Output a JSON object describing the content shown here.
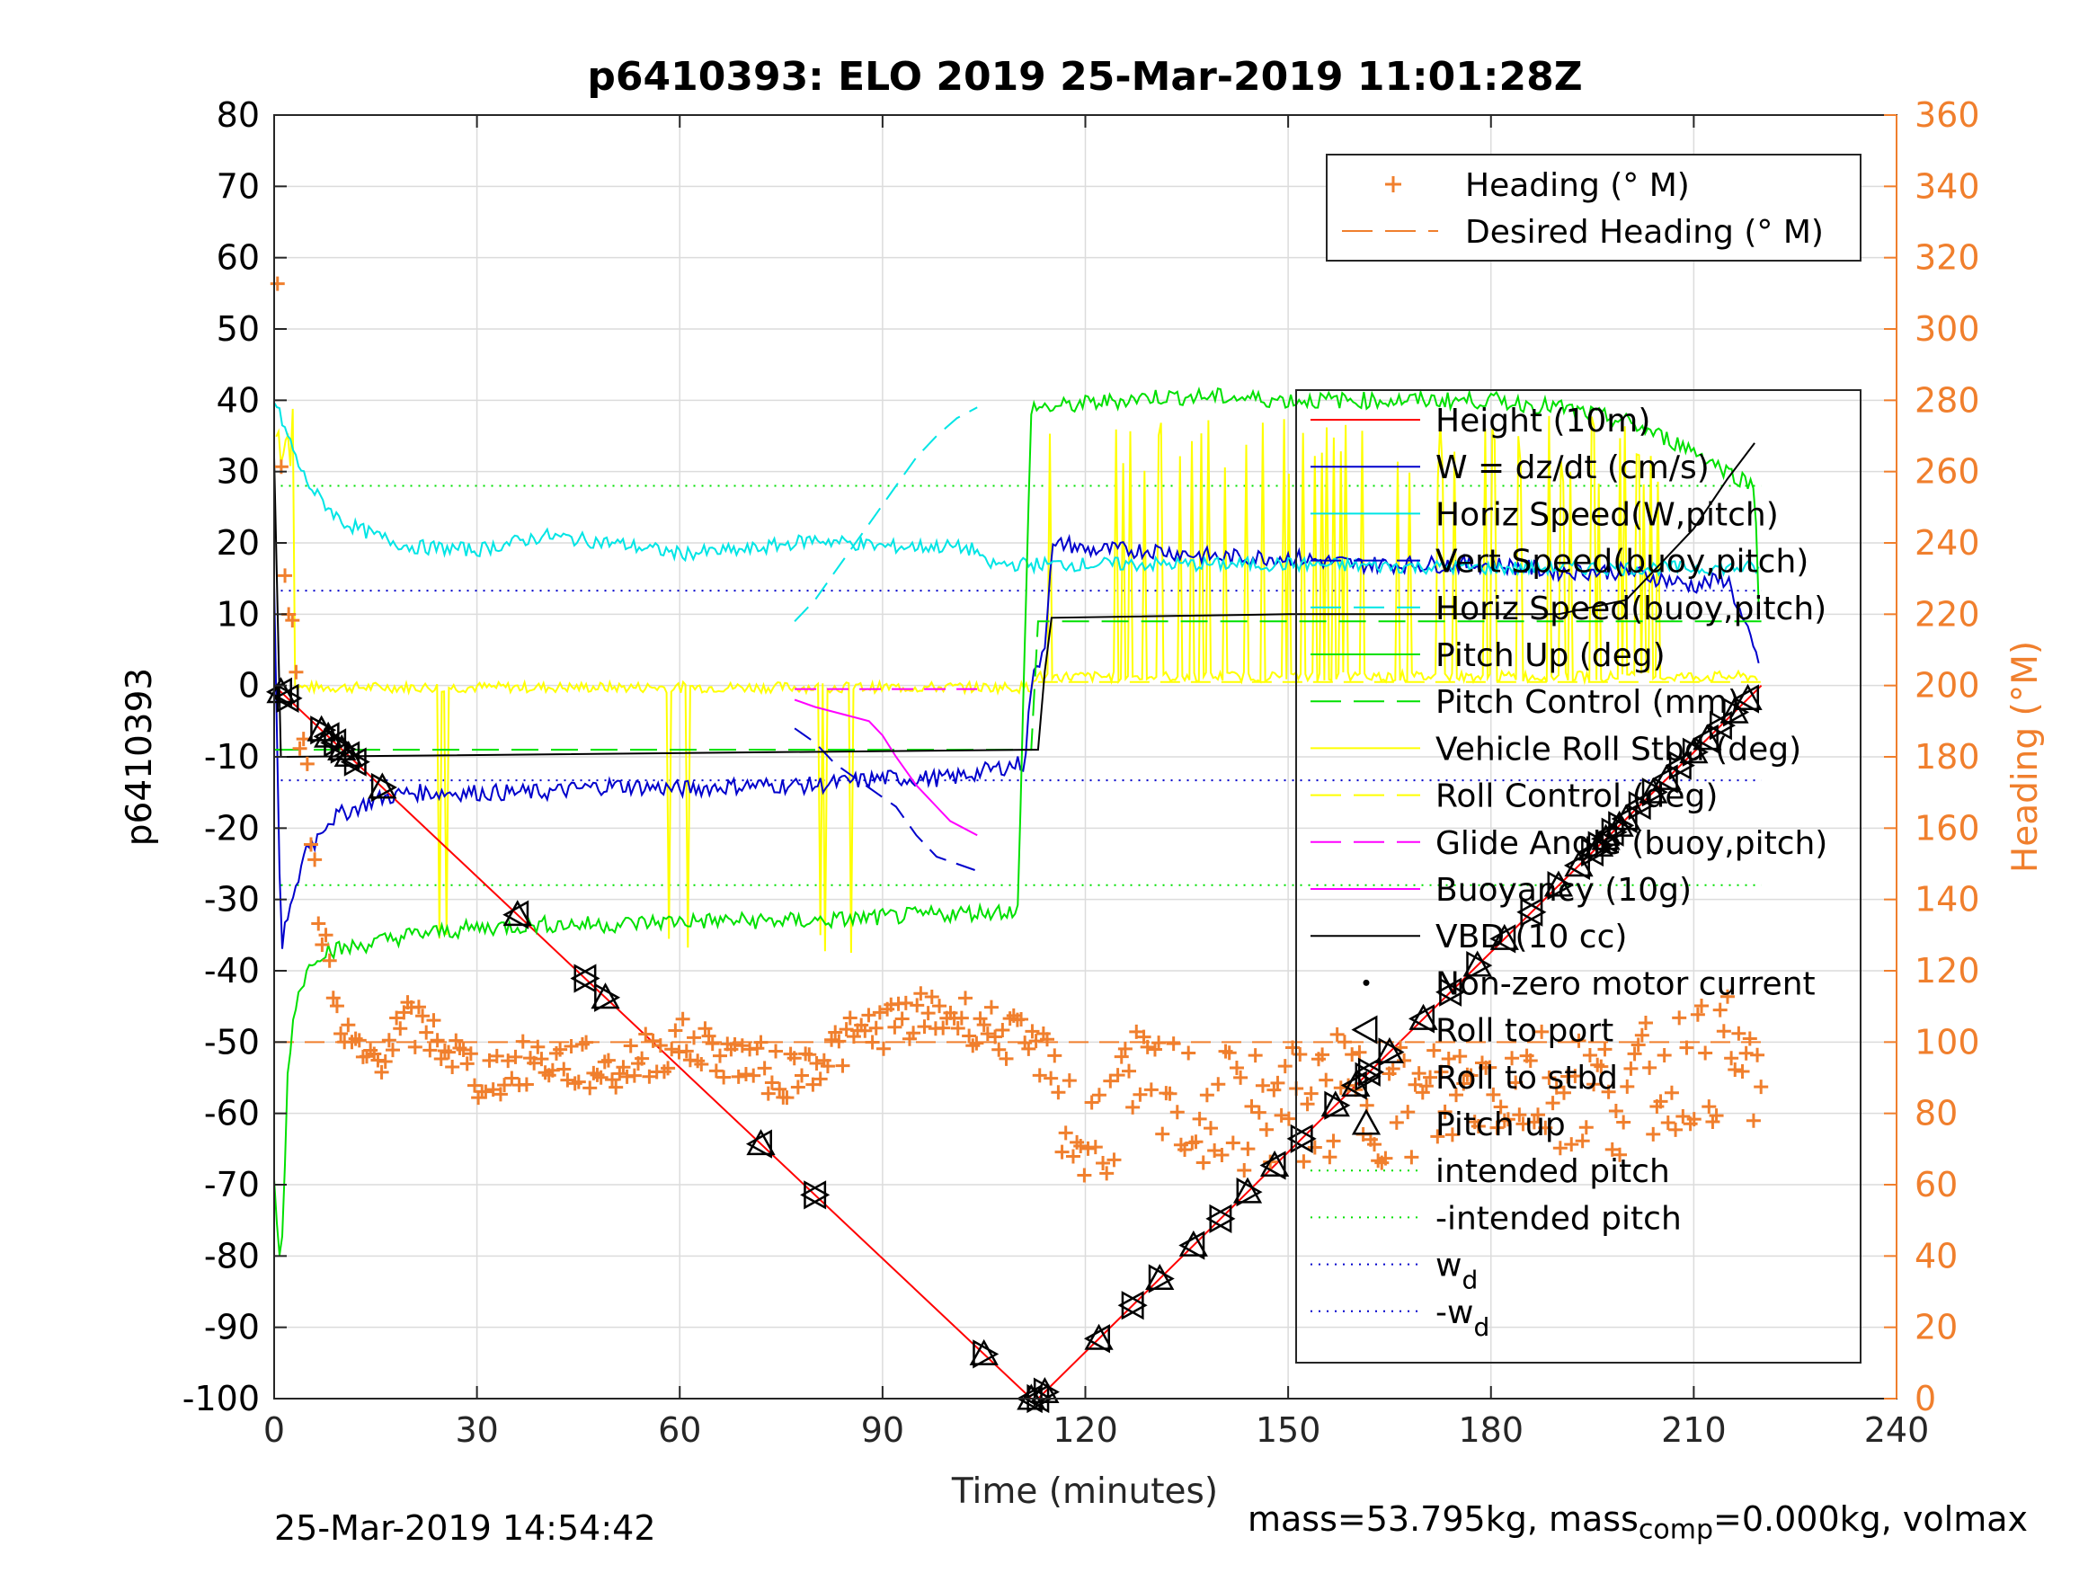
{
  "chart_data": {
    "type": "line",
    "title": "p6410393: ELO 2019 25-Mar-2019 11:01:28Z",
    "xlabel": "Time (minutes)",
    "ylabel": "p6410393",
    "y2label": "Heading (°M)",
    "xlim": [
      0,
      240
    ],
    "ylim": [
      -100,
      80
    ],
    "y2lim": [
      0,
      360
    ],
    "xticks": [
      0,
      30,
      60,
      90,
      120,
      150,
      180,
      210,
      240
    ],
    "yticks": [
      -100,
      -90,
      -80,
      -70,
      -60,
      -50,
      -40,
      -30,
      -20,
      -10,
      0,
      10,
      20,
      30,
      40,
      50,
      60,
      70,
      80
    ],
    "y2ticks": [
      0,
      20,
      40,
      60,
      80,
      100,
      120,
      140,
      160,
      180,
      200,
      220,
      240,
      260,
      280,
      300,
      320,
      340,
      360
    ],
    "grid": true,
    "colors": {
      "axis_right": "#f07f2d",
      "heading": "#f07f2d",
      "height": "#ff0000",
      "w": "#0000cc",
      "horiz": "#00e5e5",
      "pitch": "#00e000",
      "roll": "#ffff00",
      "glide": "#ff00ff",
      "vbd": "#000000"
    },
    "legend_top": [
      {
        "label": "Heading (° M)",
        "style": "plus",
        "color": "#f07f2d"
      },
      {
        "label": "Desired Heading (° M)",
        "style": "dashed",
        "color": "#f07f2d"
      }
    ],
    "legend_main": [
      {
        "label": "Height (10m)",
        "style": "solid",
        "color": "#ff0000"
      },
      {
        "label": "W = dz/dt (cm/s)",
        "style": "solid",
        "color": "#0000cc"
      },
      {
        "label": "Horiz Speed(W,pitch)",
        "style": "solid",
        "color": "#00e5e5"
      },
      {
        "label": "Vert Speed(buoy,pitch)",
        "style": "dashed",
        "color": "#0000cc"
      },
      {
        "label": "Horiz Speed(buoy,pitch)",
        "style": "dashed",
        "color": "#00e5e5"
      },
      {
        "label": "Pitch Up (deg)",
        "style": "solid",
        "color": "#00e000"
      },
      {
        "label": "Pitch Control (mm)",
        "style": "dashed",
        "color": "#00e000"
      },
      {
        "label": "Vehicle Roll Stbd (deg)",
        "style": "solid",
        "color": "#ffff00"
      },
      {
        "label": "Roll Control (deg)",
        "style": "dashed",
        "color": "#ffff00"
      },
      {
        "label": "Glide Angle (buoy,pitch)",
        "style": "dashed",
        "color": "#ff00ff"
      },
      {
        "label": "Buoyancy (10g)",
        "style": "solid",
        "color": "#ff00ff"
      },
      {
        "label": "VBD (10 cc)",
        "style": "solid",
        "color": "#000000"
      },
      {
        "label": "Non-zero motor current",
        "style": "dot",
        "color": "#000000"
      },
      {
        "label": "Roll to port",
        "style": "tri-left",
        "color": "#000000"
      },
      {
        "label": "Roll to stbd",
        "style": "tri-right",
        "color": "#000000"
      },
      {
        "label": "Pitch up",
        "style": "tri-up",
        "color": "#000000"
      },
      {
        "label": "intended pitch",
        "style": "dotted",
        "color": "#00e000"
      },
      {
        "label": "-intended pitch",
        "style": "dotted",
        "color": "#00e000"
      },
      {
        "label": "w",
        "sub": "d",
        "style": "dotted",
        "color": "#0000cc"
      },
      {
        "label": "-w",
        "sub": "d",
        "style": "dotted",
        "color": "#0000cc"
      }
    ],
    "reference_lines": {
      "intended_pitch": 28,
      "w_d": 13.3,
      "desired_heading": 100
    },
    "series": [
      {
        "name": "Height (10m)",
        "x": [
          0,
          112,
          113,
          220
        ],
        "y": [
          0,
          -100,
          -100,
          0
        ]
      },
      {
        "name": "W = dz/dt (cm/s)",
        "x": [
          0,
          1,
          2,
          3,
          4,
          5,
          6,
          7,
          8,
          10,
          15,
          20,
          30,
          40,
          50,
          60,
          70,
          80,
          90,
          100,
          105,
          110,
          111,
          112,
          114,
          115,
          117,
          120,
          130,
          140,
          150,
          160,
          170,
          180,
          190,
          200,
          210,
          215,
          220
        ],
        "y": [
          15,
          -38,
          -32,
          -30,
          -25,
          -22,
          -22,
          -20,
          -19,
          -18,
          -16,
          -15,
          -15,
          -15,
          -14,
          -14.5,
          -14,
          -14,
          -13,
          -13,
          -12,
          -11,
          -11,
          0,
          6,
          19,
          20,
          19,
          19,
          18,
          18,
          17,
          17,
          17,
          16,
          16,
          14,
          15,
          2
        ]
      },
      {
        "name": "Horiz Speed(W,pitch)",
        "x": [
          0,
          2,
          4,
          6,
          8,
          10,
          15,
          20,
          30,
          40,
          50,
          60,
          70,
          80,
          90,
          100,
          104,
          105,
          110,
          120,
          150,
          180,
          210,
          220
        ],
        "y": [
          40,
          35,
          30,
          27,
          25,
          23,
          21,
          19.5,
          19,
          21,
          20,
          18.5,
          19,
          20.5,
          19.5,
          19.5,
          19,
          17,
          17,
          17,
          17,
          16.5,
          16.5,
          16.5
        ]
      },
      {
        "name": "Vert Speed(buoy,pitch)",
        "x": [
          77,
          80,
          83,
          86,
          89,
          92,
          95,
          98,
          101,
          104
        ],
        "y": [
          -6,
          -8,
          -11,
          -13,
          -15,
          -17,
          -21,
          -24,
          -25,
          -26
        ]
      },
      {
        "name": "Horiz Speed(buoy,pitch)",
        "x": [
          77,
          80,
          83,
          86,
          89,
          92,
          95,
          98,
          101,
          104
        ],
        "y": [
          9,
          12,
          16,
          20,
          24,
          28,
          32,
          35,
          37.5,
          39
        ]
      },
      {
        "name": "Pitch Up (deg)",
        "x": [
          0,
          1,
          2,
          3,
          4,
          5,
          6,
          8,
          10,
          15,
          20,
          30,
          40,
          50,
          60,
          70,
          80,
          90,
          100,
          110,
          112,
          113,
          115,
          120,
          130,
          140,
          150,
          160,
          170,
          180,
          190,
          200,
          210,
          215,
          219,
          220
        ],
        "y": [
          -70,
          -83,
          -55,
          -45,
          -42,
          -40,
          -38,
          -37,
          -37,
          -36,
          -35,
          -34,
          -33.5,
          -33.5,
          -33,
          -33,
          -33,
          -32.5,
          -32,
          -31.5,
          39,
          39,
          39,
          39.5,
          40.5,
          40.5,
          40,
          40,
          40,
          40,
          39,
          37,
          33,
          30,
          28,
          2
        ]
      },
      {
        "name": "Pitch Control (mm)",
        "x": [
          0,
          112,
          113,
          220
        ],
        "y": [
          -9,
          -9,
          9,
          9
        ]
      },
      {
        "name": "Glide Angle (buoy,pitch)",
        "x": [
          77,
          104
        ],
        "y": [
          -0.5,
          -0.5
        ]
      },
      {
        "name": "Buoyancy (10g)",
        "x": [
          77,
          80,
          84,
          88,
          90,
          92,
          95,
          98,
          100,
          104
        ],
        "y": [
          -2,
          -3,
          -4,
          -5,
          -7,
          -10,
          -14,
          -17,
          -19,
          -21
        ]
      },
      {
        "name": "VBD (10 cc)",
        "x": [
          0,
          1,
          2,
          112,
          113,
          114,
          115,
          150,
          180,
          190,
          200,
          205,
          210,
          215,
          219
        ],
        "y": [
          32,
          -10,
          -10,
          -9,
          -9,
          2,
          9.5,
          10,
          10,
          10,
          12,
          17,
          22,
          29,
          34
        ]
      }
    ],
    "marker_times": [
      1,
      2,
      7,
      8,
      9,
      10,
      11,
      12,
      16,
      36,
      46,
      49,
      72,
      80,
      105,
      112,
      113,
      114,
      122,
      127,
      131,
      136,
      140,
      144,
      148,
      152,
      157,
      160,
      162,
      165,
      170,
      174,
      178,
      182,
      186,
      190,
      193,
      195,
      196,
      197,
      198,
      199,
      200,
      202,
      204,
      206,
      208,
      210,
      212,
      214,
      216,
      218
    ]
  },
  "footer": {
    "timestamp": "25-Mar-2019 14:54:42",
    "mass_text": "mass=53.795kg, mass",
    "mass_sub": "comp",
    "mass_rest": "=0.000kg, volmax"
  }
}
